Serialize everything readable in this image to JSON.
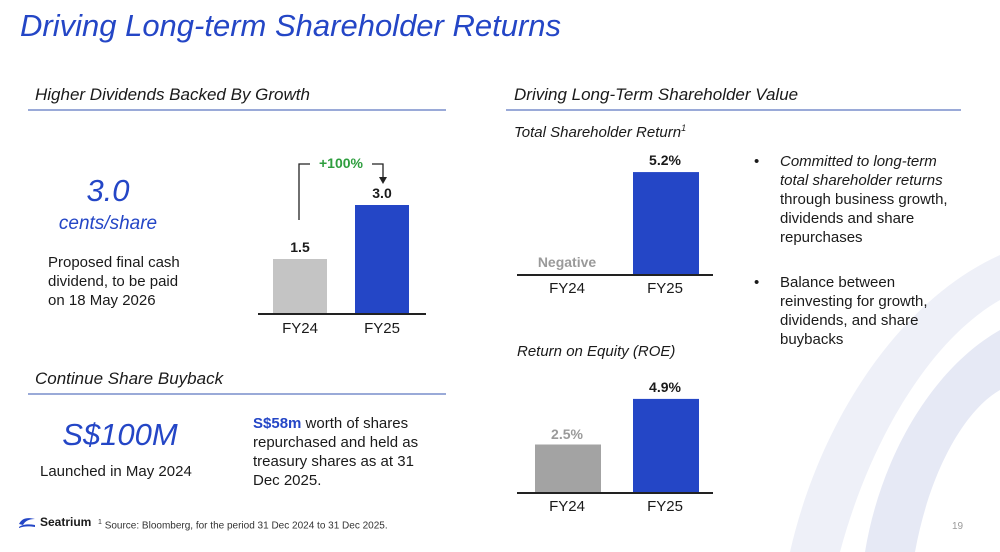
{
  "title": "Driving Long-term Shareholder Returns",
  "dividends": {
    "heading": "Higher Dividends Backed By Growth",
    "value": "3.0",
    "unit": "cents/share",
    "description": "Proposed final cash dividend, to be paid on 18 May 2026",
    "growth_label": "+100%",
    "chart_data": {
      "type": "bar",
      "categories": [
        "FY24",
        "FY25"
      ],
      "values": [
        1.5,
        3.0
      ],
      "value_labels": [
        "1.5",
        "3.0"
      ]
    }
  },
  "buyback": {
    "heading": "Continue Share Buyback",
    "amount": "S$100M",
    "launched": "Launched in May 2024",
    "highlight": "S$58m",
    "description": " worth of shares repurchased and held as treasury shares as at 31 Dec 2025."
  },
  "value": {
    "heading": "Driving Long-Term Shareholder Value",
    "tsr": {
      "title": "Total Shareholder Return",
      "footnote_mark": "1",
      "chart_data": {
        "type": "bar",
        "categories": [
          "FY24",
          "FY25"
        ],
        "values": [
          null,
          5.2
        ],
        "value_labels": [
          "Negative",
          "5.2%"
        ]
      }
    },
    "roe": {
      "title": "Return on Equity (ROE)",
      "chart_data": {
        "type": "bar",
        "categories": [
          "FY24",
          "FY25"
        ],
        "values": [
          2.5,
          4.9
        ],
        "value_labels": [
          "2.5%",
          "4.9%"
        ]
      }
    },
    "bullets": [
      {
        "italic": "Committed to long-term total shareholder returns",
        "rest": " through business growth, dividends and share repurchases"
      },
      {
        "italic": "",
        "rest": "Balance between reinvesting for growth, dividends, and share buybacks"
      }
    ]
  },
  "footer": {
    "brand": "Seatrium",
    "footnote": "Source: Bloomberg, for the period 31 Dec 2024 to 31 Dec 2025.",
    "footnote_mark": "1",
    "page_number": "19"
  },
  "colors": {
    "accent": "#2446c6",
    "bar_gray": "#c4c4c4",
    "roe_gray": "#a3a3a3",
    "positive": "#2e9e3e"
  }
}
